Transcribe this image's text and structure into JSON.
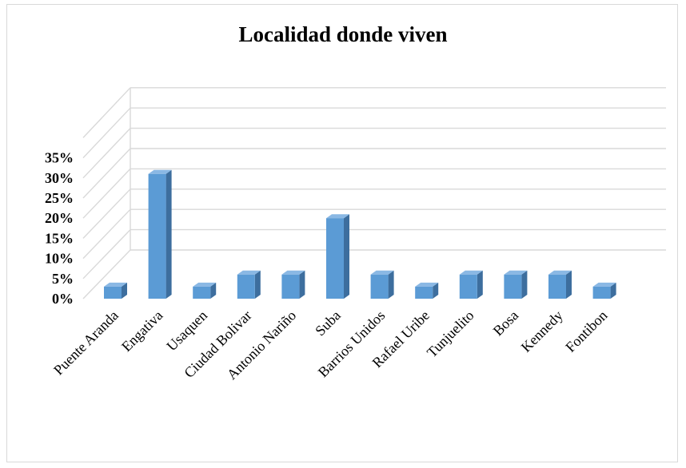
{
  "chart_data": {
    "type": "bar",
    "title": "Localidad donde viven",
    "xlabel": "",
    "ylabel": "",
    "ylim": [
      0,
      35
    ],
    "y_ticks": [
      "0%",
      "5%",
      "10%",
      "15%",
      "20%",
      "25%",
      "30%",
      "35%"
    ],
    "categories": [
      "Puente Aranda",
      "Engativa",
      "Usaquen",
      "Ciudad Bolivar",
      "Antonio Nariño",
      "Suba",
      "Barrios Unidos",
      "Rafael Uribe",
      "Tunjuelito",
      "Bosa",
      "Kennedy",
      "Fontibon"
    ],
    "values": [
      3,
      31,
      3,
      6,
      6,
      20,
      6,
      3,
      6,
      6,
      6,
      3
    ],
    "grid": true,
    "legend": "none",
    "colors": {
      "bar_front": "#5b9bd5",
      "bar_side": "#3d6e9e",
      "bar_top": "#8ab8e4",
      "grid": "#d9d9d9"
    }
  }
}
